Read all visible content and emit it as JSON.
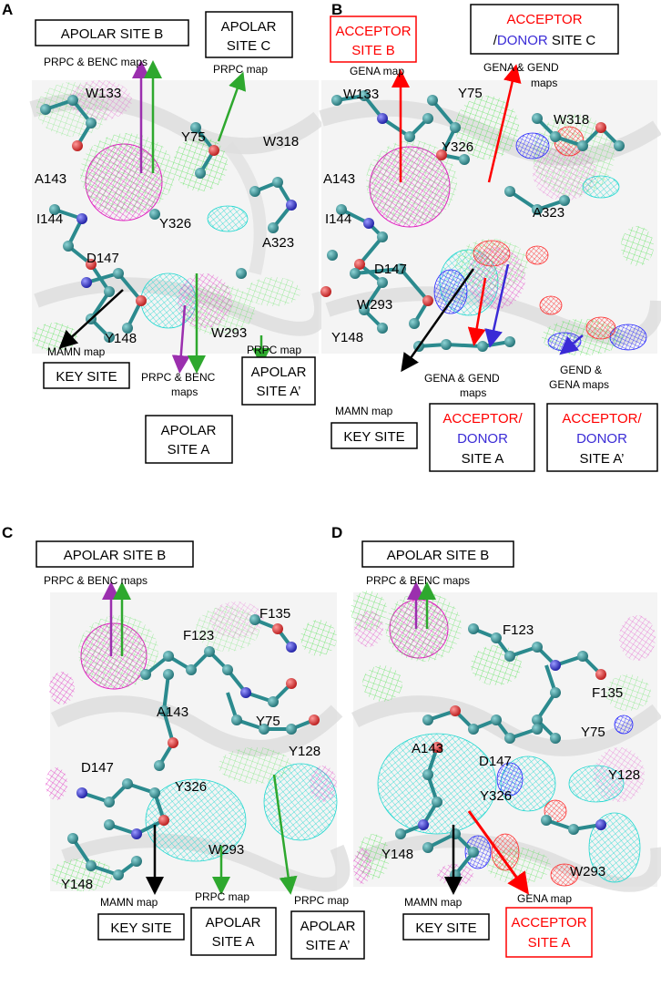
{
  "colors": {
    "prpc": "#2ea82e",
    "benc": "#9b2fae",
    "mamn": "#000000",
    "gena": "#ff0000",
    "gend": "#3a2bd6",
    "acceptor_text": "#ff0000",
    "donor_text": "#3a2bd6",
    "mesh_magenta": "#e020c0",
    "mesh_green": "#40e040",
    "mesh_cyan": "#20d8d0",
    "mesh_red": "#ff2a2a",
    "mesh_blue": "#2525ff",
    "atom_c": "#2b8a8e",
    "atom_o": "#e03030",
    "atom_n": "#3030d0"
  },
  "panels": [
    {
      "letter": "A",
      "residues": [
        "W133",
        "Y75",
        "W318",
        "A143",
        "I144",
        "Y326",
        "D147",
        "A323",
        "Y148",
        "W293"
      ],
      "sites": [
        {
          "lines": [
            "APOLAR SITE B"
          ]
        },
        {
          "lines": [
            "APOLAR",
            "SITE C"
          ]
        },
        {
          "lines": [
            "KEY SITE"
          ]
        },
        {
          "lines": [
            "APOLAR",
            "SITE A"
          ]
        },
        {
          "lines": [
            "APOLAR",
            "SITE A’"
          ]
        }
      ],
      "map_labels": [
        "PRPC & BENC maps",
        "PRPC map",
        "MAMN map",
        "PRPC & BENC",
        "maps",
        "PRPC map"
      ]
    },
    {
      "letter": "B",
      "residues": [
        "W133",
        "Y75",
        "Y326",
        "W318",
        "A143",
        "I144",
        "A323",
        "D147",
        "W293",
        "Y148"
      ],
      "sites": [
        {
          "lines": [
            "ACCEPTOR",
            "SITE B"
          ]
        },
        {
          "lines": [
            "ACCEPTOR",
            "/DONOR SITE C"
          ]
        },
        {
          "lines": [
            "KEY SITE"
          ]
        },
        {
          "lines": [
            "ACCEPTOR/",
            "DONOR",
            "SITE A"
          ]
        },
        {
          "lines": [
            "ACCEPTOR/",
            "DONOR",
            "SITE A’"
          ]
        }
      ],
      "site_c_donor": "DONOR",
      "site_c_rest": " SITE C",
      "site_c_slash": "/",
      "map_labels": [
        "GENA map",
        "GENA & GEND",
        "maps",
        "MAMN map",
        "GENA & GEND",
        "maps",
        "GEND &",
        "GENA maps"
      ]
    },
    {
      "letter": "C",
      "residues": [
        "F123",
        "F135",
        "A143",
        "Y75",
        "Y128",
        "D147",
        "Y326",
        "W293",
        "Y148"
      ],
      "sites": [
        {
          "lines": [
            "APOLAR  SITE B"
          ]
        },
        {
          "lines": [
            "KEY SITE"
          ]
        },
        {
          "lines": [
            "APOLAR",
            "SITE A"
          ]
        },
        {
          "lines": [
            "APOLAR",
            "SITE A’"
          ]
        }
      ],
      "map_labels": [
        "PRPC & BENC maps",
        "MAMN map",
        "PRPC map",
        "PRPC map"
      ]
    },
    {
      "letter": "D",
      "residues": [
        "F123",
        "F135",
        "Y75",
        "A143",
        "D147",
        "Y128",
        "Y326",
        "Y148",
        "W293"
      ],
      "sites": [
        {
          "lines": [
            "APOLAR  SITE B"
          ]
        },
        {
          "lines": [
            "KEY SITE"
          ]
        },
        {
          "lines": [
            "ACCEPTOR",
            "SITE A"
          ]
        }
      ],
      "map_labels": [
        "PRPC & BENC maps",
        "MAMN map",
        "GENA map"
      ]
    }
  ]
}
